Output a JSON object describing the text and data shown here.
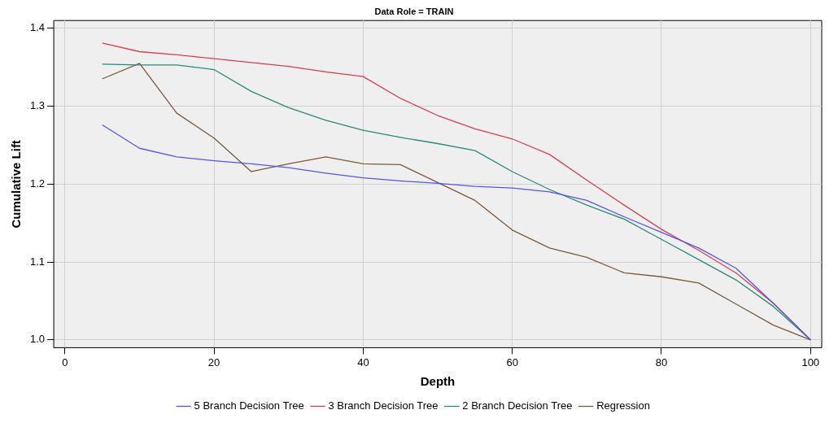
{
  "chart_data": {
    "type": "line",
    "title": "Data Role = TRAIN",
    "xlabel": "Depth",
    "ylabel": "Cumulative Lift",
    "x": [
      5,
      10,
      15,
      20,
      25,
      30,
      35,
      40,
      45,
      50,
      55,
      60,
      65,
      70,
      75,
      80,
      85,
      90,
      95,
      100
    ],
    "xlim": [
      -1.5,
      101.5
    ],
    "xticks": [
      0,
      20,
      40,
      60,
      80,
      100
    ],
    "ylim": [
      0.99,
      1.41
    ],
    "yticks": [
      {
        "value": 1.0,
        "label": "1.0"
      },
      1.1,
      1.2,
      1.3,
      1.4
    ],
    "grid": true,
    "legend": "bottom",
    "marker": "none",
    "line_style": "solid",
    "series": [
      {
        "name": "5 Branch Decision Tree",
        "color": "#5555ee",
        "values": [
          1.276,
          1.246,
          1.235,
          1.23,
          1.226,
          1.221,
          1.214,
          1.208,
          1.204,
          1.201,
          1.197,
          1.195,
          1.19,
          1.179,
          1.158,
          1.138,
          1.118,
          1.092,
          1.047,
          1.0
        ]
      },
      {
        "name": "3 Branch Decision Tree",
        "color": "#d5404f",
        "values": [
          1.381,
          1.37,
          1.366,
          1.361,
          1.356,
          1.351,
          1.344,
          1.338,
          1.31,
          1.288,
          1.271,
          1.258,
          1.238,
          1.205,
          1.173,
          1.142,
          1.115,
          1.086,
          1.047,
          1.0
        ]
      },
      {
        "name": "2 Branch Decision Tree",
        "color": "#2a8a78",
        "values": [
          1.354,
          1.353,
          1.353,
          1.347,
          1.319,
          1.298,
          1.282,
          1.269,
          1.26,
          1.252,
          1.243,
          1.216,
          1.193,
          1.173,
          1.155,
          1.129,
          1.103,
          1.077,
          1.043,
          1.0
        ]
      },
      {
        "name": "Regression",
        "color": "#7b5a3c",
        "values": [
          1.335,
          1.355,
          1.291,
          1.259,
          1.216,
          1.226,
          1.235,
          1.226,
          1.225,
          1.202,
          1.179,
          1.141,
          1.118,
          1.106,
          1.086,
          1.081,
          1.073,
          1.046,
          1.019,
          1.0
        ]
      }
    ]
  }
}
